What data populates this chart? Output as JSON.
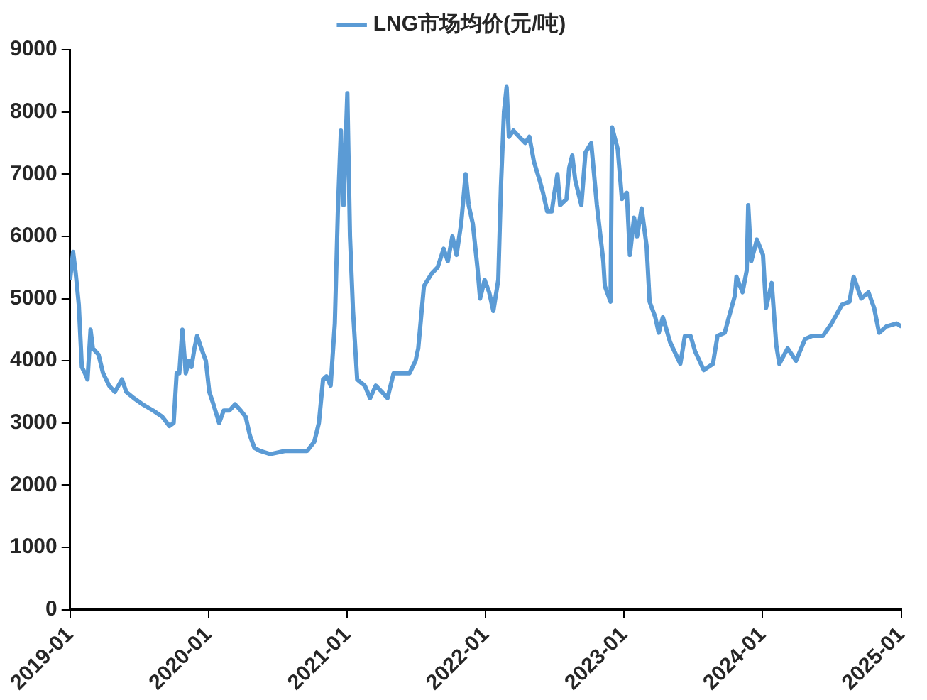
{
  "chart_data": {
    "type": "line",
    "legend": "top",
    "grid": false,
    "marker": "none",
    "line_style": "solid",
    "xlim": [
      "2019-01",
      "2025-01"
    ],
    "xticks": [
      "2019-01",
      "2020-01",
      "2021-01",
      "2022-01",
      "2023-01",
      "2024-01",
      "2025-01"
    ],
    "ylim": [
      0,
      9000
    ],
    "yticks": [
      0,
      1000,
      2000,
      3000,
      4000,
      5000,
      6000,
      7000,
      8000,
      9000
    ],
    "series": [
      {
        "name": "LNG市场均价(元/吨)",
        "color": "#5b9bd5",
        "x": [
          "2019-01-01",
          "2019-01-09",
          "2019-01-16",
          "2019-01-24",
          "2019-02-01",
          "2019-02-09",
          "2019-02-16",
          "2019-02-24",
          "2019-03-02",
          "2019-03-17",
          "2019-03-29",
          "2019-04-14",
          "2019-04-29",
          "2019-05-18",
          "2019-05-29",
          "2019-06-18",
          "2019-07-11",
          "2019-08-08",
          "2019-09-01",
          "2019-09-20",
          "2019-10-01",
          "2019-10-09",
          "2019-10-16",
          "2019-10-24",
          "2019-11-02",
          "2019-11-10",
          "2019-11-17",
          "2019-11-25",
          "2019-12-02",
          "2019-12-10",
          "2019-12-25",
          "2020-01-03",
          "2020-01-14",
          "2020-01-29",
          "2020-02-10",
          "2020-02-25",
          "2020-03-11",
          "2020-03-26",
          "2020-04-08",
          "2020-04-19",
          "2020-05-01",
          "2020-05-16",
          "2020-06-12",
          "2020-07-20",
          "2020-09-17",
          "2020-10-06",
          "2020-10-18",
          "2020-10-29",
          "2020-11-07",
          "2020-11-18",
          "2020-11-29",
          "2020-12-07",
          "2020-12-15",
          "2020-12-22",
          "2021-01-01",
          "2021-01-08",
          "2021-01-16",
          "2021-01-27",
          "2021-02-16",
          "2021-03-02",
          "2021-03-17",
          "2021-04-02",
          "2021-04-17",
          "2021-05-03",
          "2021-05-21",
          "2021-06-14",
          "2021-06-30",
          "2021-07-07",
          "2021-07-22",
          "2021-08-11",
          "2021-08-27",
          "2021-09-12",
          "2021-09-23",
          "2021-10-05",
          "2021-10-16",
          "2021-10-28",
          "2021-11-09",
          "2021-11-17",
          "2021-11-28",
          "2021-12-10",
          "2021-12-17",
          "2021-12-29",
          "2022-01-10",
          "2022-01-21",
          "2022-02-03",
          "2022-02-10",
          "2022-02-18",
          "2022-02-25",
          "2022-03-03",
          "2022-03-15",
          "2022-03-30",
          "2022-04-15",
          "2022-04-26",
          "2022-05-08",
          "2022-05-23",
          "2022-06-01",
          "2022-06-12",
          "2022-06-24",
          "2022-07-01",
          "2022-07-09",
          "2022-07-16",
          "2022-08-02",
          "2022-08-09",
          "2022-08-17",
          "2022-08-25",
          "2022-09-10",
          "2022-09-21",
          "2022-10-06",
          "2022-10-21",
          "2022-11-07",
          "2022-11-11",
          "2022-11-26",
          "2022-11-30",
          "2022-12-15",
          "2022-12-26",
          "2023-01-08",
          "2023-01-16",
          "2023-01-27",
          "2023-02-04",
          "2023-02-16",
          "2023-03-01",
          "2023-03-09",
          "2023-03-24",
          "2023-04-02",
          "2023-04-13",
          "2023-05-02",
          "2023-05-29",
          "2023-06-10",
          "2023-06-25",
          "2023-07-07",
          "2023-07-30",
          "2023-08-23",
          "2023-09-04",
          "2023-09-23",
          "2023-10-04",
          "2023-10-20",
          "2023-10-24",
          "2023-11-09",
          "2023-11-20",
          "2023-11-24",
          "2023-12-02",
          "2023-12-17",
          "2024-01-02",
          "2024-01-10",
          "2024-01-25",
          "2024-02-06",
          "2024-02-14",
          "2024-03-07",
          "2024-03-29",
          "2024-04-22",
          "2024-05-11",
          "2024-06-08",
          "2024-07-01",
          "2024-07-28",
          "2024-08-17",
          "2024-08-28",
          "2024-09-17",
          "2024-10-06",
          "2024-10-21",
          "2024-11-03",
          "2024-11-22",
          "2024-12-19",
          "2025-01-01"
        ],
        "values": [
          5300,
          5750,
          5400,
          4900,
          3900,
          3800,
          3700,
          4500,
          4200,
          4100,
          3800,
          3600,
          3500,
          3700,
          3500,
          3400,
          3300,
          3200,
          3100,
          2950,
          3000,
          3800,
          3800,
          4500,
          3800,
          4000,
          3900,
          4200,
          4400,
          4250,
          4000,
          3500,
          3300,
          3000,
          3200,
          3200,
          3300,
          3200,
          3100,
          2800,
          2600,
          2550,
          2500,
          2550,
          2550,
          2700,
          3000,
          3700,
          3750,
          3600,
          4600,
          6400,
          7700,
          6500,
          8300,
          6000,
          4800,
          3700,
          3600,
          3400,
          3600,
          3500,
          3400,
          3800,
          3800,
          3800,
          4000,
          4200,
          5200,
          5400,
          5500,
          5800,
          5600,
          6000,
          5700,
          6200,
          7000,
          6500,
          6200,
          5500,
          5000,
          5300,
          5100,
          4800,
          5300,
          6800,
          8000,
          8400,
          7600,
          7700,
          7600,
          7500,
          7600,
          7200,
          6900,
          6700,
          6400,
          6400,
          6700,
          7000,
          6500,
          6600,
          7100,
          7300,
          6900,
          6500,
          7350,
          7500,
          6500,
          5600,
          5200,
          4950,
          7750,
          7400,
          6600,
          6700,
          5700,
          6300,
          6000,
          6450,
          5850,
          4950,
          4700,
          4450,
          4700,
          4300,
          3950,
          4400,
          4400,
          4150,
          3850,
          3950,
          4400,
          4450,
          4700,
          5050,
          5350,
          5100,
          5450,
          6500,
          5600,
          5950,
          5700,
          4850,
          5250,
          4250,
          3950,
          4200,
          4000,
          4350,
          4400,
          4400,
          4600,
          4900,
          4950,
          5350,
          5000,
          5100,
          4850,
          4450,
          4550,
          4600,
          4550
        ]
      }
    ]
  }
}
